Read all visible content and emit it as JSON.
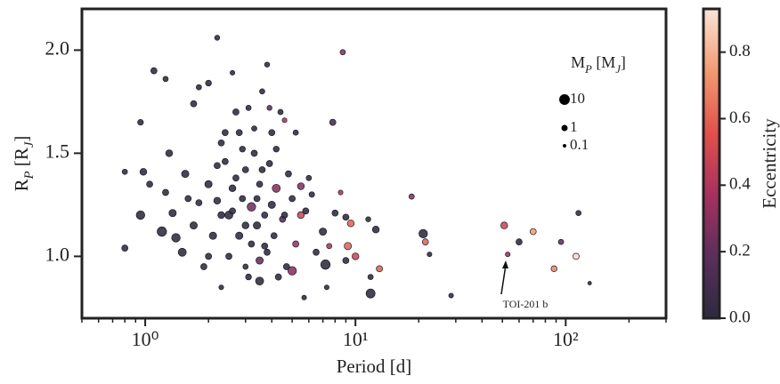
{
  "chart_data": {
    "type": "scatter",
    "xlabel": "Period [d]",
    "ylabel": [
      {
        "text": "R"
      },
      {
        "text": "P",
        "sub": true
      },
      {
        "text": " [R"
      },
      {
        "text": "J",
        "sub": true
      },
      {
        "text": "]"
      }
    ],
    "colorbar_label": "Eccentricity",
    "annotation": "TOI-201 b",
    "xscale": "log",
    "xlim": [
      0.5,
      300
    ],
    "xticks": [
      {
        "value": 1,
        "label": "10⁰"
      },
      {
        "value": 10,
        "label": "10¹"
      },
      {
        "value": 100,
        "label": "10²"
      }
    ],
    "xminorticks": [
      0.5,
      0.6,
      0.7,
      0.8,
      0.9,
      2,
      3,
      4,
      5,
      6,
      7,
      8,
      9,
      20,
      30,
      40,
      50,
      60,
      70,
      80,
      90,
      200,
      300
    ],
    "ylim": [
      0.7,
      2.2
    ],
    "yticks": [
      {
        "value": 1,
        "label": "1.0"
      },
      {
        "value": 1.5,
        "label": "1.5"
      },
      {
        "value": 2,
        "label": "2.0"
      }
    ],
    "clim": [
      0,
      0.93
    ],
    "cticks": [
      {
        "value": 0,
        "label": "0.0"
      },
      0.2,
      0.4,
      0.6,
      0.8
    ],
    "colormap": [
      "#2d2a3e",
      "#5b2e5c",
      "#a8305f",
      "#e3504a",
      "#f39a72",
      "#f9e5d6"
    ],
    "size_legend": {
      "title": [
        {
          "text": "M"
        },
        {
          "text": "P",
          "sub": true
        },
        {
          "text": " [M"
        },
        {
          "text": "J",
          "sub": true
        },
        {
          "text": "]"
        }
      ],
      "values": [
        10,
        1,
        0.1
      ]
    },
    "x": [
      0.8,
      0.95,
      0.98,
      0.95,
      0.8,
      1.1,
      1.25,
      1.05,
      1.2,
      1.25,
      1.3,
      1.35,
      1.4,
      1.5,
      1.55,
      1.6,
      1.7,
      1.7,
      1.8,
      1.9,
      2.0,
      2.2,
      2.0,
      2.1,
      2.2,
      2.3,
      2.3,
      2.4,
      2.5,
      2.5,
      2.6,
      2.6,
      2.7,
      2.8,
      2.8,
      2.9,
      3.0,
      3.0,
      3.1,
      3.2,
      3.2,
      3.3,
      3.4,
      3.5,
      3.5,
      3.6,
      3.7,
      3.8,
      3.8,
      3.9,
      4.0,
      4.0,
      4.1,
      4.2,
      4.3,
      4.4,
      4.5,
      4.6,
      4.7,
      4.8,
      5.0,
      5.0,
      5.2,
      5.5,
      5.5,
      5.7,
      5.8,
      6.5,
      7.0,
      7.2,
      7.5,
      7.8,
      8.5,
      8.7,
      9,
      9.2,
      9.5,
      9,
      10,
      11.5,
      12.5,
      13,
      11.8,
      11.8,
      18.5,
      21,
      21.5,
      22.5,
      28.5,
      51,
      53,
      60,
      70,
      88,
      95,
      112,
      115,
      130,
      2.4,
      2.7,
      2.9,
      3.3,
      3.6,
      2.2,
      3.0,
      3.4,
      2.6,
      3.7,
      4.2,
      2.0,
      1.8,
      3.1,
      4.6,
      5.2,
      6.0,
      3.9,
      2.3,
      3.5,
      7.3,
      6.2,
      8.0
    ],
    "y": [
      1.41,
      1.65,
      1.41,
      1.2,
      1.04,
      1.9,
      1.86,
      1.35,
      1.12,
      1.31,
      1.5,
      1.21,
      1.09,
      1.02,
      1.4,
      1.28,
      1.15,
      1.74,
      1.82,
      0.95,
      1.84,
      2.06,
      1.35,
      1.1,
      1.27,
      0.85,
      1.55,
      1.46,
      1.2,
      1.0,
      1.89,
      1.33,
      1.7,
      1.1,
      1.6,
      1.28,
      0.95,
      1.42,
      1.72,
      1.24,
      1.06,
      1.5,
      1.15,
      0.88,
      1.35,
      1.8,
      1.2,
      1.93,
      1.02,
      1.45,
      1.25,
      1.6,
      1.1,
      1.33,
      0.9,
      1.7,
      1.18,
      1.66,
      0.95,
      1.4,
      0.93,
      1.28,
      1.06,
      1.2,
      1.34,
      0.8,
      1.22,
      1.02,
      1.12,
      0.96,
      1.05,
      1.65,
      1.31,
      1.99,
      1.19,
      1.05,
      1.16,
      0.98,
      1.0,
      1.18,
      1.13,
      0.94,
      0.82,
      0.9,
      1.29,
      1.11,
      1.07,
      1.01,
      0.81,
      1.15,
      1.01,
      1.07,
      1.12,
      0.94,
      1.07,
      1.0,
      1.21,
      0.87,
      1.6,
      1.38,
      1.52,
      1.62,
      1.42,
      1.44,
      1.15,
      1.28,
      1.22,
      1.05,
      1.52,
      1.0,
      1.26,
      0.9,
      1.2,
      1.6,
      1.38,
      1.72,
      1.2,
      0.98,
      0.85,
      1.3,
      1.21
    ],
    "eccentricity": [
      0,
      0,
      0,
      0,
      0,
      0,
      0,
      0,
      0,
      0,
      0,
      0,
      0,
      0,
      0,
      0,
      0,
      0,
      0,
      0,
      0,
      0,
      0,
      0,
      0,
      0,
      0,
      0,
      0,
      0,
      0,
      0,
      0,
      0,
      0,
      0,
      0,
      0,
      0,
      0.25,
      0,
      0,
      0,
      0,
      0,
      0,
      0,
      0,
      0,
      0,
      0,
      0,
      0,
      0.3,
      0,
      0,
      0.15,
      0.4,
      0,
      0,
      0.3,
      0,
      0.35,
      0.5,
      0.3,
      0,
      0,
      0,
      0,
      0,
      0.4,
      0.1,
      0.4,
      0.3,
      0,
      0.6,
      0.6,
      0,
      0.5,
      0,
      0,
      0.6,
      0,
      0,
      0.3,
      0,
      0.6,
      0,
      0,
      0.5,
      0.35,
      0,
      0.75,
      0.7,
      0.2,
      0.9,
      0,
      0,
      0,
      0,
      0,
      0,
      0,
      0,
      0,
      0,
      0,
      0,
      0,
      0,
      0,
      0,
      0,
      0,
      0,
      0.2,
      0,
      0.2,
      0,
      0,
      0
    ],
    "mass": [
      0.5,
      0.7,
      1.5,
      4,
      1,
      1,
      0.5,
      1,
      6,
      1,
      1.5,
      2,
      4,
      3,
      2,
      1,
      2,
      1,
      0.5,
      1,
      0.8,
      0.4,
      2,
      2,
      1.5,
      0.3,
      1,
      1,
      3,
      1,
      0.3,
      1.5,
      1,
      2,
      1,
      1,
      0.5,
      1,
      0.5,
      4,
      1,
      1,
      2,
      3,
      1,
      0.5,
      1,
      0.4,
      1,
      1,
      2,
      1,
      1,
      3,
      1,
      0.5,
      1,
      0.3,
      1,
      1,
      4,
      1,
      1,
      1.5,
      1.5,
      0.3,
      1,
      1,
      2,
      6,
      0.5,
      1,
      0.3,
      0.5,
      1,
      2,
      1.5,
      1,
      1.5,
      0.4,
      1.5,
      1,
      5,
      0.5,
      0.5,
      4,
      1,
      0.3,
      0.3,
      1.5,
      0.3,
      1,
      1,
      0.8,
      0.5,
      1,
      0.5,
      0.1,
      1,
      1,
      0.8,
      0.5,
      1,
      1,
      1.5,
      1,
      1,
      1,
      0.8,
      1,
      1,
      0.8,
      1,
      0.5,
      0.5,
      0.4,
      1.5,
      2,
      0.3,
      0.6,
      1
    ]
  }
}
